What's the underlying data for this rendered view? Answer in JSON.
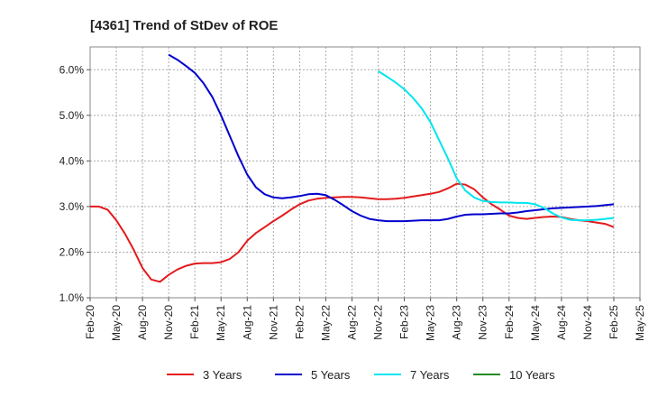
{
  "chart_data": {
    "type": "line",
    "title": "[4361]  Trend of StDev of ROE",
    "xlabel": "",
    "ylabel": "",
    "y_ticks": [
      "1.0%",
      "2.0%",
      "3.0%",
      "4.0%",
      "5.0%",
      "6.0%"
    ],
    "ylim": [
      1.0,
      6.5
    ],
    "x_ticks": [
      "Feb-20",
      "May-20",
      "Aug-20",
      "Nov-20",
      "Feb-21",
      "May-21",
      "Aug-21",
      "Nov-21",
      "Feb-22",
      "May-22",
      "Aug-22",
      "Nov-22",
      "Feb-23",
      "May-23",
      "Aug-23",
      "Nov-23",
      "Feb-24",
      "May-24",
      "Aug-24",
      "Nov-24",
      "Feb-25",
      "May-25"
    ],
    "grid": true,
    "legend_position": "bottom",
    "series": [
      {
        "name": "3 Years",
        "color": "#e41a1c",
        "points": [
          [
            "Feb-20",
            3.0
          ],
          [
            "Mar-20",
            3.0
          ],
          [
            "Apr-20",
            2.93
          ],
          [
            "May-20",
            2.7
          ],
          [
            "Jun-20",
            2.4
          ],
          [
            "Jul-20",
            2.05
          ],
          [
            "Aug-20",
            1.65
          ],
          [
            "Sep-20",
            1.4
          ],
          [
            "Oct-20",
            1.35
          ],
          [
            "Nov-20",
            1.5
          ],
          [
            "Dec-20",
            1.62
          ],
          [
            "Jan-21",
            1.7
          ],
          [
            "Feb-21",
            1.75
          ],
          [
            "Mar-21",
            1.76
          ],
          [
            "Apr-21",
            1.76
          ],
          [
            "May-21",
            1.78
          ],
          [
            "Jun-21",
            1.85
          ],
          [
            "Jul-21",
            2.0
          ],
          [
            "Aug-21",
            2.25
          ],
          [
            "Sep-21",
            2.42
          ],
          [
            "Oct-21",
            2.55
          ],
          [
            "Nov-21",
            2.68
          ],
          [
            "Dec-21",
            2.8
          ],
          [
            "Jan-22",
            2.93
          ],
          [
            "Feb-22",
            3.05
          ],
          [
            "Mar-22",
            3.13
          ],
          [
            "Apr-22",
            3.17
          ],
          [
            "May-22",
            3.19
          ],
          [
            "Jun-22",
            3.2
          ],
          [
            "Jul-22",
            3.21
          ],
          [
            "Aug-22",
            3.21
          ],
          [
            "Sep-22",
            3.2
          ],
          [
            "Oct-22",
            3.18
          ],
          [
            "Nov-22",
            3.16
          ],
          [
            "Dec-22",
            3.16
          ],
          [
            "Jan-23",
            3.17
          ],
          [
            "Feb-23",
            3.19
          ],
          [
            "Mar-23",
            3.22
          ],
          [
            "Apr-23",
            3.25
          ],
          [
            "May-23",
            3.28
          ],
          [
            "Jun-23",
            3.32
          ],
          [
            "Jul-23",
            3.4
          ],
          [
            "Aug-23",
            3.5
          ],
          [
            "Sep-23",
            3.48
          ],
          [
            "Oct-23",
            3.38
          ],
          [
            "Nov-23",
            3.2
          ],
          [
            "Dec-23",
            3.05
          ],
          [
            "Jan-24",
            2.93
          ],
          [
            "Feb-24",
            2.8
          ],
          [
            "Mar-24",
            2.75
          ],
          [
            "Apr-24",
            2.73
          ],
          [
            "May-24",
            2.75
          ],
          [
            "Jun-24",
            2.77
          ],
          [
            "Jul-24",
            2.78
          ],
          [
            "Aug-24",
            2.77
          ],
          [
            "Sep-24",
            2.73
          ],
          [
            "Oct-24",
            2.7
          ],
          [
            "Nov-24",
            2.68
          ],
          [
            "Dec-24",
            2.65
          ],
          [
            "Jan-25",
            2.62
          ],
          [
            "Feb-25",
            2.55
          ]
        ]
      },
      {
        "name": "5 Years",
        "color": "#0000cd",
        "points": [
          [
            "Nov-20",
            6.33
          ],
          [
            "Dec-20",
            6.22
          ],
          [
            "Jan-21",
            6.08
          ],
          [
            "Feb-21",
            5.93
          ],
          [
            "Mar-21",
            5.7
          ],
          [
            "Apr-21",
            5.4
          ],
          [
            "May-21",
            5.0
          ],
          [
            "Jun-21",
            4.55
          ],
          [
            "Jul-21",
            4.1
          ],
          [
            "Aug-21",
            3.7
          ],
          [
            "Sep-21",
            3.42
          ],
          [
            "Oct-21",
            3.27
          ],
          [
            "Nov-21",
            3.2
          ],
          [
            "Dec-21",
            3.18
          ],
          [
            "Jan-22",
            3.2
          ],
          [
            "Feb-22",
            3.23
          ],
          [
            "Mar-22",
            3.27
          ],
          [
            "Apr-22",
            3.28
          ],
          [
            "May-22",
            3.25
          ],
          [
            "Jun-22",
            3.15
          ],
          [
            "Jul-22",
            3.03
          ],
          [
            "Aug-22",
            2.9
          ],
          [
            "Sep-22",
            2.8
          ],
          [
            "Oct-22",
            2.73
          ],
          [
            "Nov-22",
            2.7
          ],
          [
            "Dec-22",
            2.68
          ],
          [
            "Jan-23",
            2.68
          ],
          [
            "Feb-23",
            2.68
          ],
          [
            "Mar-23",
            2.69
          ],
          [
            "Apr-23",
            2.7
          ],
          [
            "May-23",
            2.7
          ],
          [
            "Jun-23",
            2.7
          ],
          [
            "Jul-23",
            2.73
          ],
          [
            "Aug-23",
            2.78
          ],
          [
            "Sep-23",
            2.82
          ],
          [
            "Oct-23",
            2.83
          ],
          [
            "Nov-23",
            2.83
          ],
          [
            "Dec-23",
            2.84
          ],
          [
            "Jan-24",
            2.85
          ],
          [
            "Feb-24",
            2.85
          ],
          [
            "Mar-24",
            2.87
          ],
          [
            "Apr-24",
            2.9
          ],
          [
            "May-24",
            2.92
          ],
          [
            "Jun-24",
            2.94
          ],
          [
            "Jul-24",
            2.96
          ],
          [
            "Aug-24",
            2.97
          ],
          [
            "Sep-24",
            2.98
          ],
          [
            "Oct-24",
            2.99
          ],
          [
            "Nov-24",
            3.0
          ],
          [
            "Dec-24",
            3.01
          ],
          [
            "Jan-25",
            3.03
          ],
          [
            "Feb-25",
            3.05
          ]
        ]
      },
      {
        "name": "7 Years",
        "color": "#00e5ee",
        "points": [
          [
            "Nov-22",
            5.97
          ],
          [
            "Dec-22",
            5.85
          ],
          [
            "Jan-23",
            5.72
          ],
          [
            "Feb-23",
            5.57
          ],
          [
            "Mar-23",
            5.38
          ],
          [
            "Apr-23",
            5.15
          ],
          [
            "May-23",
            4.85
          ],
          [
            "Jun-23",
            4.45
          ],
          [
            "Jul-23",
            4.05
          ],
          [
            "Aug-23",
            3.62
          ],
          [
            "Sep-23",
            3.35
          ],
          [
            "Oct-23",
            3.2
          ],
          [
            "Nov-23",
            3.12
          ],
          [
            "Dec-23",
            3.1
          ],
          [
            "Jan-24",
            3.09
          ],
          [
            "Feb-24",
            3.09
          ],
          [
            "Mar-24",
            3.08
          ],
          [
            "Apr-24",
            3.08
          ],
          [
            "May-24",
            3.05
          ],
          [
            "Jun-24",
            2.97
          ],
          [
            "Jul-24",
            2.85
          ],
          [
            "Aug-24",
            2.76
          ],
          [
            "Sep-24",
            2.71
          ],
          [
            "Oct-24",
            2.7
          ],
          [
            "Nov-24",
            2.7
          ],
          [
            "Dec-24",
            2.71
          ],
          [
            "Jan-25",
            2.73
          ],
          [
            "Feb-25",
            2.75
          ]
        ]
      },
      {
        "name": "10 Years",
        "color": "#228b22",
        "points": []
      }
    ]
  }
}
